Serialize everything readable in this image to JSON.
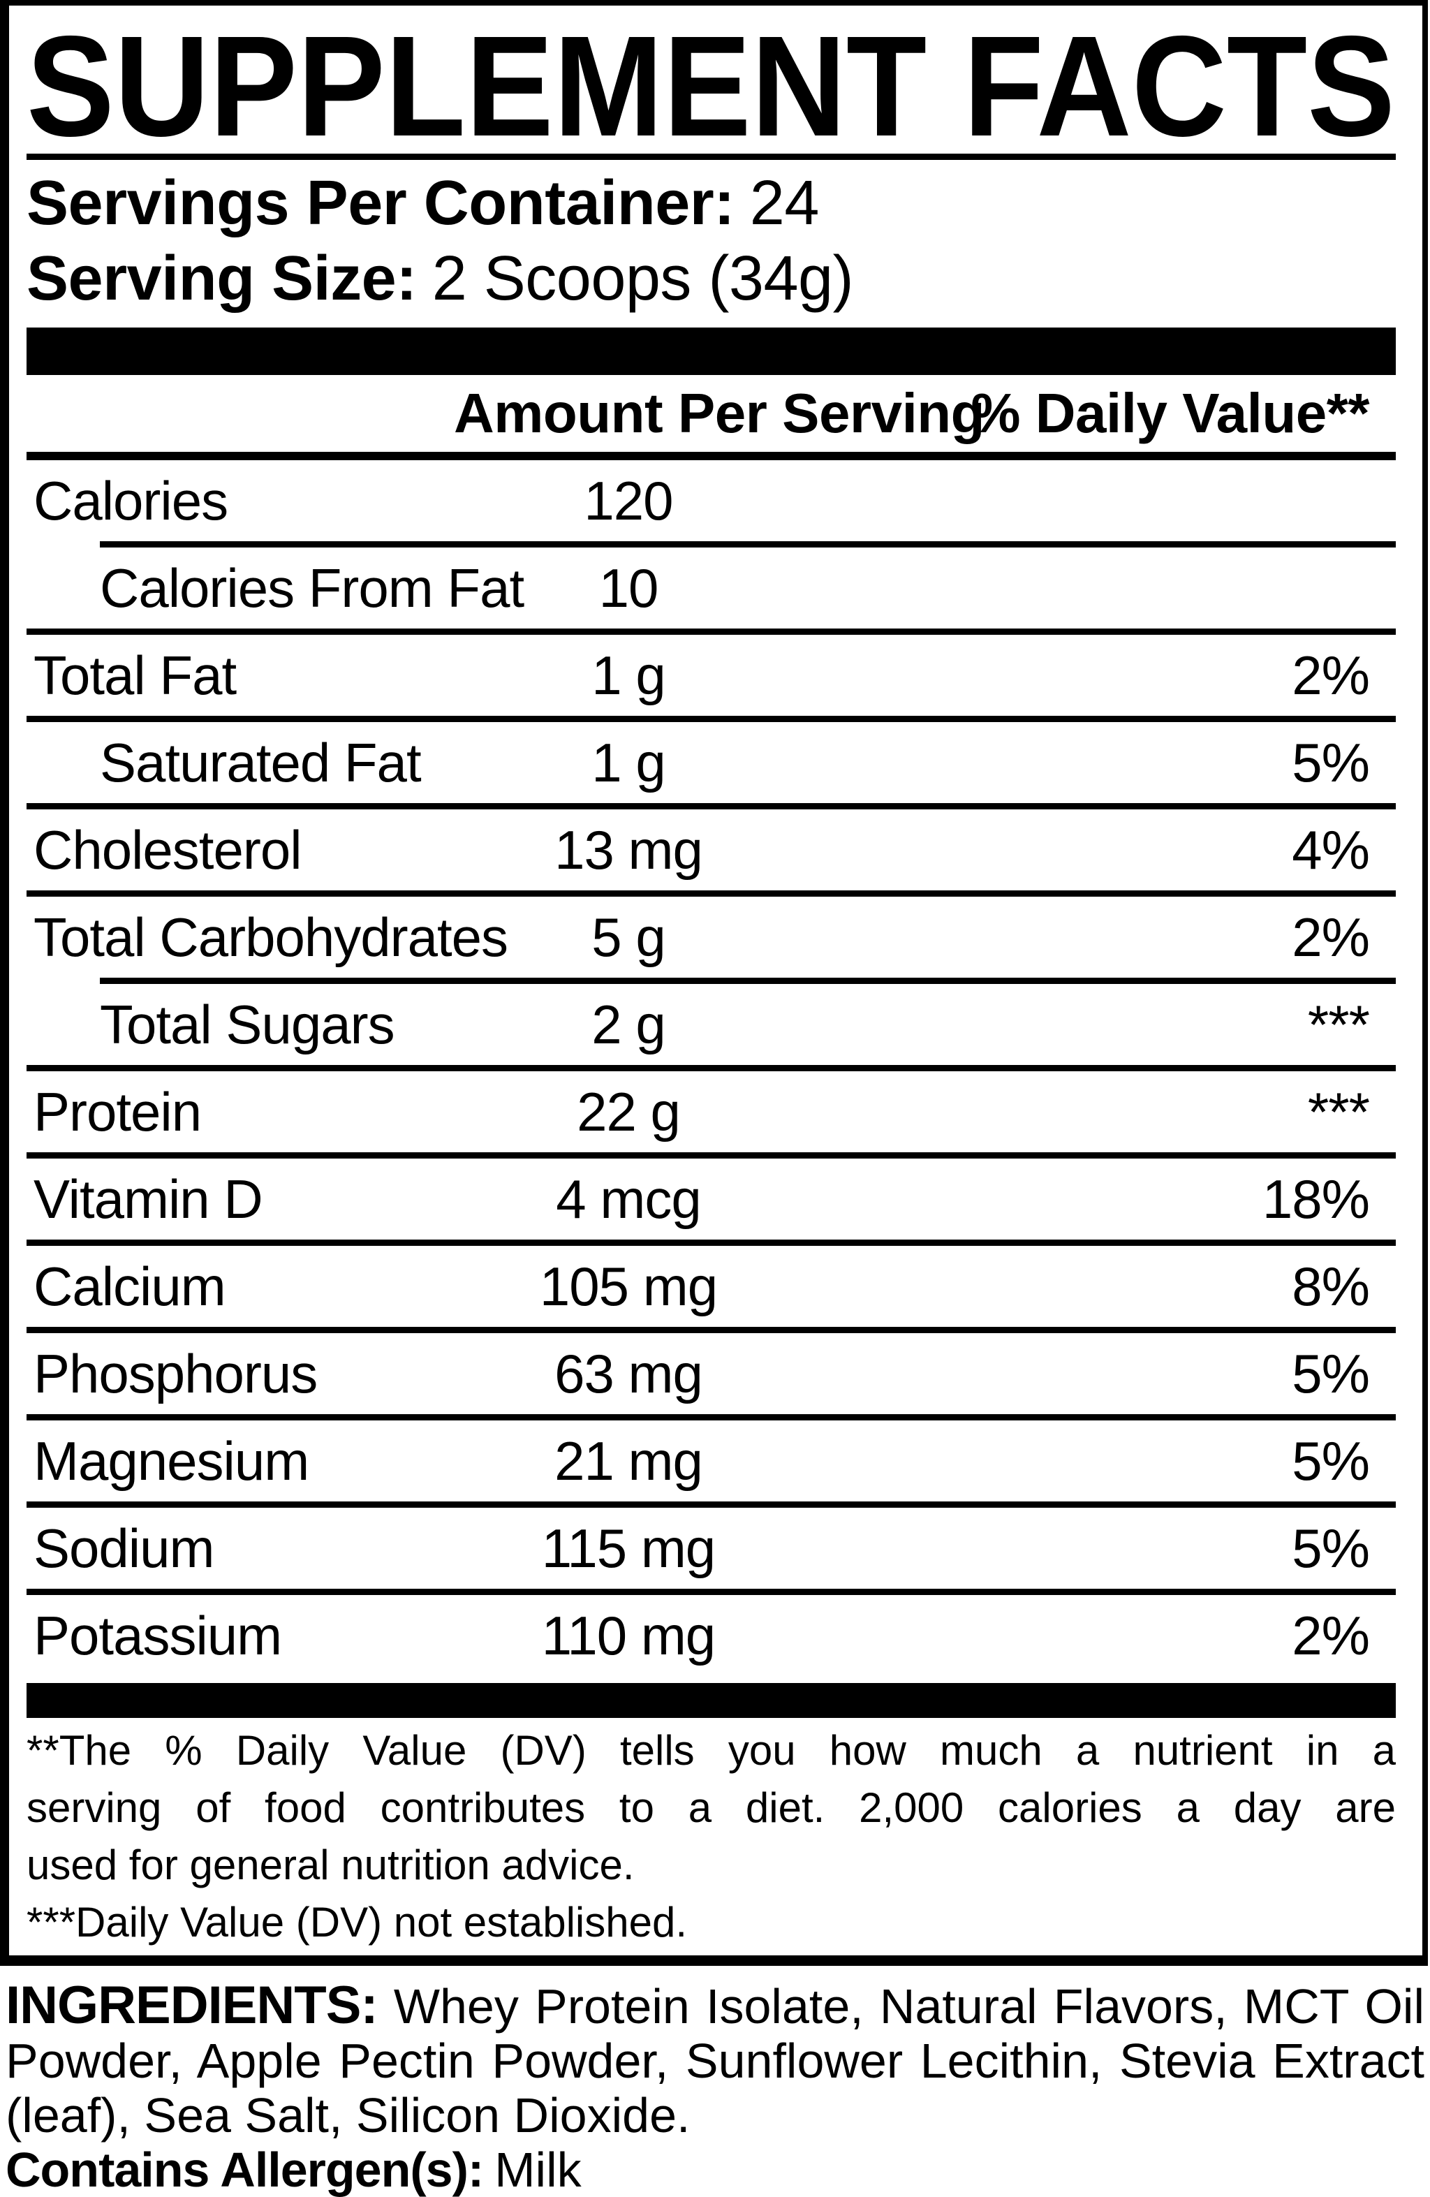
{
  "panel": {
    "title": "SUPPLEMENT FACTS",
    "servings_per_container": {
      "label": "Servings Per Container:",
      "value": "24"
    },
    "serving_size": {
      "label": "Serving Size:",
      "value": "2 Scoops (34g)"
    },
    "columns": {
      "amount": "Amount Per Serving",
      "daily_value": "% Daily Value**"
    },
    "rows": [
      {
        "name": "Calories",
        "amount": "120",
        "dv": ""
      },
      {
        "name": "Calories From Fat",
        "amount": "10",
        "dv": ""
      },
      {
        "name": "Total Fat",
        "amount": "1 g",
        "dv": "2%"
      },
      {
        "name": "Saturated Fat",
        "amount": "1 g",
        "dv": "5%"
      },
      {
        "name": "Cholesterol",
        "amount": "13 mg",
        "dv": "4%"
      },
      {
        "name": "Total Carbohydrates",
        "amount": "5 g",
        "dv": "2%"
      },
      {
        "name": "Total Sugars",
        "amount": "2 g",
        "dv": "***"
      },
      {
        "name": "Protein",
        "amount": "22 g",
        "dv": "***"
      },
      {
        "name": "Vitamin D",
        "amount": "4 mcg",
        "dv": "18%"
      },
      {
        "name": "Calcium",
        "amount": "105 mg",
        "dv": "8%"
      },
      {
        "name": "Phosphorus",
        "amount": "63 mg",
        "dv": "5%"
      },
      {
        "name": "Magnesium",
        "amount": "21 mg",
        "dv": "5%"
      },
      {
        "name": "Sodium",
        "amount": "115 mg",
        "dv": "5%"
      },
      {
        "name": "Potassium",
        "amount": "110 mg",
        "dv": "2%"
      }
    ],
    "footnote": {
      "lines": [
        "**The % Daily Value (DV) tells you how much a nutrient in a",
        "serving of food contributes to a diet. 2,000 calories a day are",
        "used for general nutrition advice.",
        "***Daily Value (DV) not established."
      ]
    }
  },
  "ingredients": {
    "label": "INGREDIENTS:",
    "lines": [
      "Whey Protein Isolate, Natural Flavors, MCT Oil",
      "Powder, Apple Pectin Powder, Sunflower Lecithin, Stevia Extract",
      "(leaf), Sea Salt, Silicon Dioxide."
    ]
  },
  "allergen": {
    "label": "Contains Allergen(s):",
    "value": "Milk"
  },
  "colors": {
    "ink": "#000000",
    "paper": "#ffffff"
  }
}
